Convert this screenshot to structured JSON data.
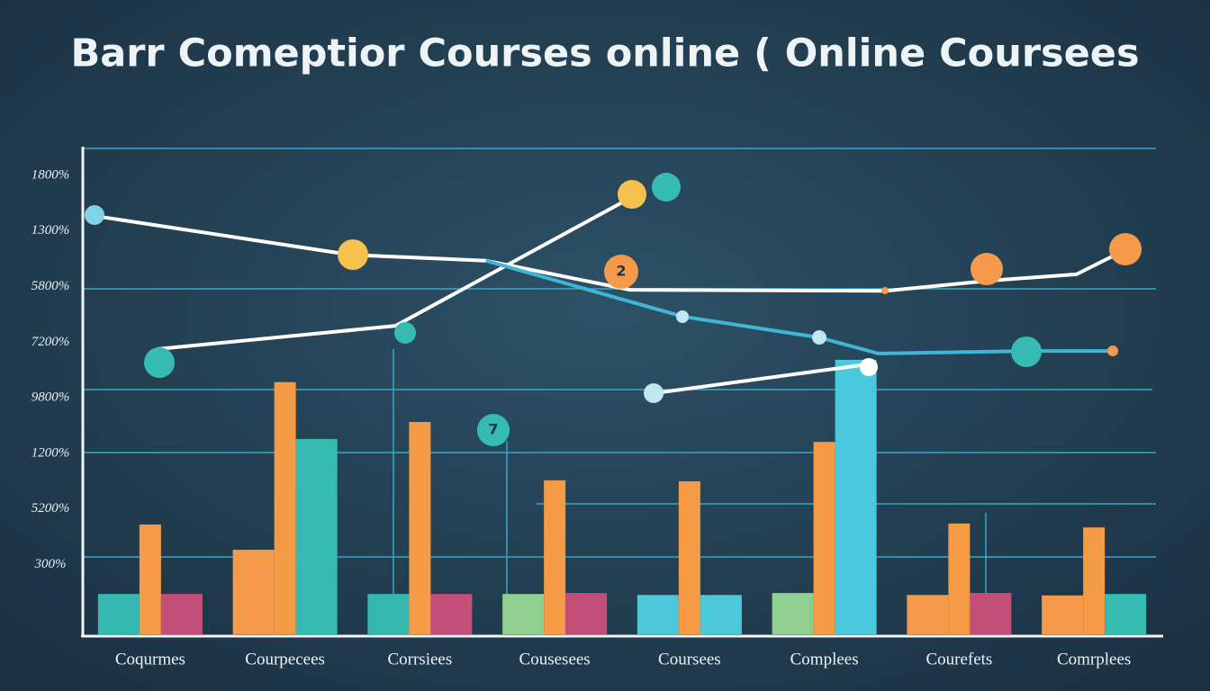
{
  "chart_data": {
    "type": "bar",
    "title": "Barr Comeptior Courses online ( Online Coursees",
    "y_axis_labels": [
      "1800%",
      "1300%",
      "5800%",
      "7200%",
      "9800%",
      "1200%",
      "5200%",
      "300%"
    ],
    "categories": [
      "Coqurmes",
      "Courpecees",
      "Corrsiees",
      "Cousesees",
      "Coursees",
      "Complees",
      "Courefets",
      "Comrplees"
    ],
    "ylim": [
      0,
      100
    ],
    "series": [
      {
        "colors": [
          "#35b8b0",
          "#f5994a",
          "#35b8b0",
          "#8fcf8f",
          "#4cc8d8",
          "#8fcf8f",
          "#f5994a",
          "#f5994a"
        ],
        "values": [
          8.3,
          17.4,
          8.3,
          8.3,
          8.1,
          8.5,
          8.1,
          8.0
        ]
      },
      {
        "colors": [
          "#f59a45",
          "#f59a45",
          "#f59a45",
          "#f59a45",
          "#f59a45",
          "#f59a45",
          "#f59a45",
          "#f59a45"
        ],
        "values": [
          22.6,
          51.9,
          43.7,
          31.7,
          31.5,
          39.6,
          22.8,
          22.0
        ]
      },
      {
        "colors": [
          "#c44f78",
          "#36bbb3",
          "#c44f78",
          "#c44f78",
          "#4cc8d8",
          "#4ac8dc",
          "#c44f78",
          "#36bbb3"
        ],
        "values": [
          8.3,
          40.2,
          8.3,
          8.5,
          8.1,
          56.5,
          8.5,
          8.3
        ]
      }
    ],
    "lines": [
      {
        "color": "#ffffff",
        "x": [
          -0.41,
          1.49,
          2.49,
          3.56,
          5.46,
          6.23,
          6.87,
          7.23
        ],
        "values": [
          86.1,
          78.1,
          76.9,
          70.9,
          70.7,
          72.8,
          74.1,
          79.1
        ]
      },
      {
        "color": "#ffffff",
        "x": [
          0.05,
          1.82,
          3.56
        ],
        "values": [
          58.7,
          63.5,
          89.8
        ]
      },
      {
        "color": "#3fb6d6",
        "x": [
          2.49,
          3.95,
          4.96,
          5.4,
          6.5,
          7.13
        ],
        "values": [
          76.9,
          65.4,
          61.1,
          57.8,
          58.3,
          58.3
        ]
      },
      {
        "color": "#ffffff",
        "x": [
          3.73,
          5.33
        ],
        "values": [
          49.6,
          55.6
        ]
      }
    ],
    "annotations": [
      "2",
      "7"
    ]
  }
}
